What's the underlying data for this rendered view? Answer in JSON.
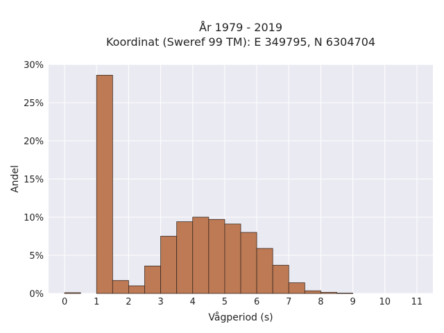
{
  "chart_data": {
    "type": "bar",
    "title_lines": [
      "År 1979 - 2019",
      "Koordinat (Sweref 99 TM): E 349795, N 6304704"
    ],
    "xlabel": "Vågperiod (s)",
    "ylabel": "Andel",
    "xlim": [
      -0.5,
      11.5
    ],
    "ylim": [
      0,
      30
    ],
    "x_ticks": [
      0,
      1,
      2,
      3,
      4,
      5,
      6,
      7,
      8,
      9,
      10,
      11
    ],
    "x_tick_labels": [
      "0",
      "1",
      "2",
      "3",
      "4",
      "5",
      "6",
      "7",
      "8",
      "9",
      "10",
      "11"
    ],
    "y_ticks": [
      0,
      5,
      10,
      15,
      20,
      25,
      30
    ],
    "y_tick_labels": [
      "0%",
      "5%",
      "10%",
      "15%",
      "20%",
      "25%",
      "30%"
    ],
    "bin_width": 0.5,
    "bins": [
      {
        "x0": 0.0,
        "value": 0.1
      },
      {
        "x0": 0.5,
        "value": 0.0
      },
      {
        "x0": 1.0,
        "value": 28.6
      },
      {
        "x0": 1.5,
        "value": 1.7
      },
      {
        "x0": 2.0,
        "value": 1.0
      },
      {
        "x0": 2.5,
        "value": 3.6
      },
      {
        "x0": 3.0,
        "value": 7.5
      },
      {
        "x0": 3.5,
        "value": 9.4
      },
      {
        "x0": 4.0,
        "value": 10.0
      },
      {
        "x0": 4.5,
        "value": 9.7
      },
      {
        "x0": 5.0,
        "value": 9.1
      },
      {
        "x0": 5.5,
        "value": 8.0
      },
      {
        "x0": 6.0,
        "value": 5.9
      },
      {
        "x0": 6.5,
        "value": 3.7
      },
      {
        "x0": 7.0,
        "value": 1.4
      },
      {
        "x0": 7.5,
        "value": 0.35
      },
      {
        "x0": 8.0,
        "value": 0.15
      },
      {
        "x0": 8.5,
        "value": 0.05
      }
    ],
    "grid": true,
    "colors": {
      "bar_fill": "#bd7a55",
      "bar_edge": "#3a2a20",
      "plot_bg": "#eaeaf2",
      "grid": "#ffffff"
    }
  }
}
